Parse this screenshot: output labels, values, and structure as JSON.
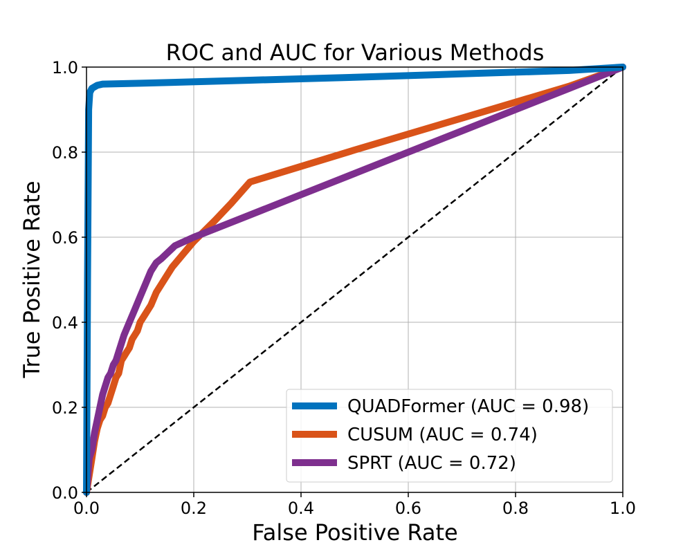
{
  "chart_data": {
    "type": "line",
    "title": "ROC and AUC for Various Methods",
    "xlabel": "False Positive Rate",
    "ylabel": "True Positive Rate",
    "xlim": [
      0.0,
      1.0
    ],
    "ylim": [
      0.0,
      1.0
    ],
    "xticks": [
      "0.0",
      "0.2",
      "0.4",
      "0.6",
      "0.8",
      "1.0"
    ],
    "yticks": [
      "0.0",
      "0.2",
      "0.4",
      "0.6",
      "0.8",
      "1.0"
    ],
    "grid": true,
    "legend_position": "lower-right",
    "series": [
      {
        "name": "QUADFormer (AUC = 0.98)",
        "color": "#0072BD",
        "x": [
          0.0,
          0.002,
          0.004,
          0.006,
          0.01,
          0.02,
          0.03,
          0.1,
          0.3,
          0.5,
          0.7,
          0.9,
          1.0
        ],
        "y": [
          0.0,
          0.5,
          0.9,
          0.94,
          0.95,
          0.957,
          0.96,
          0.962,
          0.969,
          0.976,
          0.984,
          0.992,
          1.0
        ]
      },
      {
        "name": "CUSUM (AUC = 0.74)",
        "color": "#D95319",
        "x": [
          0.0,
          0.005,
          0.01,
          0.015,
          0.02,
          0.025,
          0.03,
          0.035,
          0.04,
          0.045,
          0.05,
          0.055,
          0.06,
          0.065,
          0.07,
          0.075,
          0.08,
          0.085,
          0.09,
          0.095,
          0.1,
          0.11,
          0.12,
          0.13,
          0.14,
          0.16,
          0.18,
          0.2,
          0.24,
          0.27,
          0.305,
          0.5,
          0.7,
          0.9,
          1.0
        ],
        "y": [
          0.0,
          0.04,
          0.08,
          0.12,
          0.15,
          0.17,
          0.18,
          0.2,
          0.21,
          0.23,
          0.25,
          0.27,
          0.28,
          0.31,
          0.32,
          0.33,
          0.34,
          0.36,
          0.37,
          0.38,
          0.4,
          0.42,
          0.44,
          0.47,
          0.49,
          0.53,
          0.56,
          0.59,
          0.64,
          0.68,
          0.73,
          0.805,
          0.88,
          0.955,
          1.0
        ]
      },
      {
        "name": "SPRT (AUC = 0.72)",
        "color": "#7E2F8E",
        "x": [
          0.0,
          0.005,
          0.01,
          0.015,
          0.02,
          0.025,
          0.03,
          0.035,
          0.04,
          0.045,
          0.05,
          0.055,
          0.06,
          0.07,
          0.08,
          0.09,
          0.1,
          0.11,
          0.12,
          0.13,
          0.14,
          0.165,
          0.2,
          0.3,
          0.4,
          0.5,
          0.6,
          0.7,
          0.8,
          0.9,
          1.0
        ],
        "y": [
          0.0,
          0.08,
          0.1,
          0.14,
          0.17,
          0.2,
          0.23,
          0.25,
          0.27,
          0.28,
          0.3,
          0.31,
          0.33,
          0.37,
          0.4,
          0.43,
          0.46,
          0.49,
          0.52,
          0.54,
          0.55,
          0.58,
          0.6,
          0.65,
          0.7,
          0.75,
          0.8,
          0.85,
          0.9,
          0.95,
          1.0
        ]
      },
      {
        "name": "",
        "color": "#000000",
        "dashed": true,
        "x": [
          0.0,
          1.0
        ],
        "y": [
          0.0,
          1.0
        ]
      }
    ]
  }
}
